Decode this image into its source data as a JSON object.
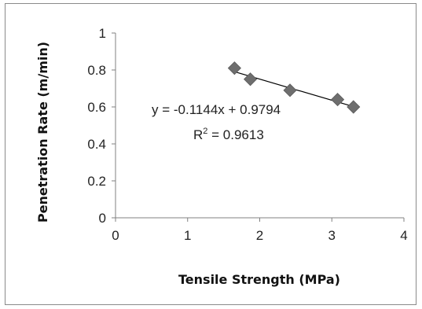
{
  "chart_data": {
    "type": "scatter",
    "title": "",
    "xlabel": "Tensile Strength (MPa)",
    "ylabel": "Penetration Rate (m/min)",
    "xlim": [
      0,
      4
    ],
    "ylim": [
      0,
      1
    ],
    "xticks": [
      "0",
      "1",
      "2",
      "3",
      "4"
    ],
    "yticks": [
      "0",
      "0.2",
      "0.4",
      "0.6",
      "0.8",
      "1"
    ],
    "grid": false,
    "legend": "none",
    "marker": "diamond",
    "marker_color": "#6e6e6e",
    "series": [
      {
        "x": [
          1.65,
          1.87,
          2.42,
          3.08,
          3.3
        ],
        "y": [
          0.81,
          0.75,
          0.69,
          0.64,
          0.6
        ]
      }
    ],
    "trendline": {
      "slope": -0.1144,
      "intercept": 0.9794,
      "x_range": [
        1.65,
        3.3
      ],
      "color": "#000000"
    },
    "annotations": {
      "equation": "y = -0.1144x + 0.9794",
      "r2_label": "R",
      "r2_sup": "2",
      "r2_value": " = 0.9613"
    }
  }
}
